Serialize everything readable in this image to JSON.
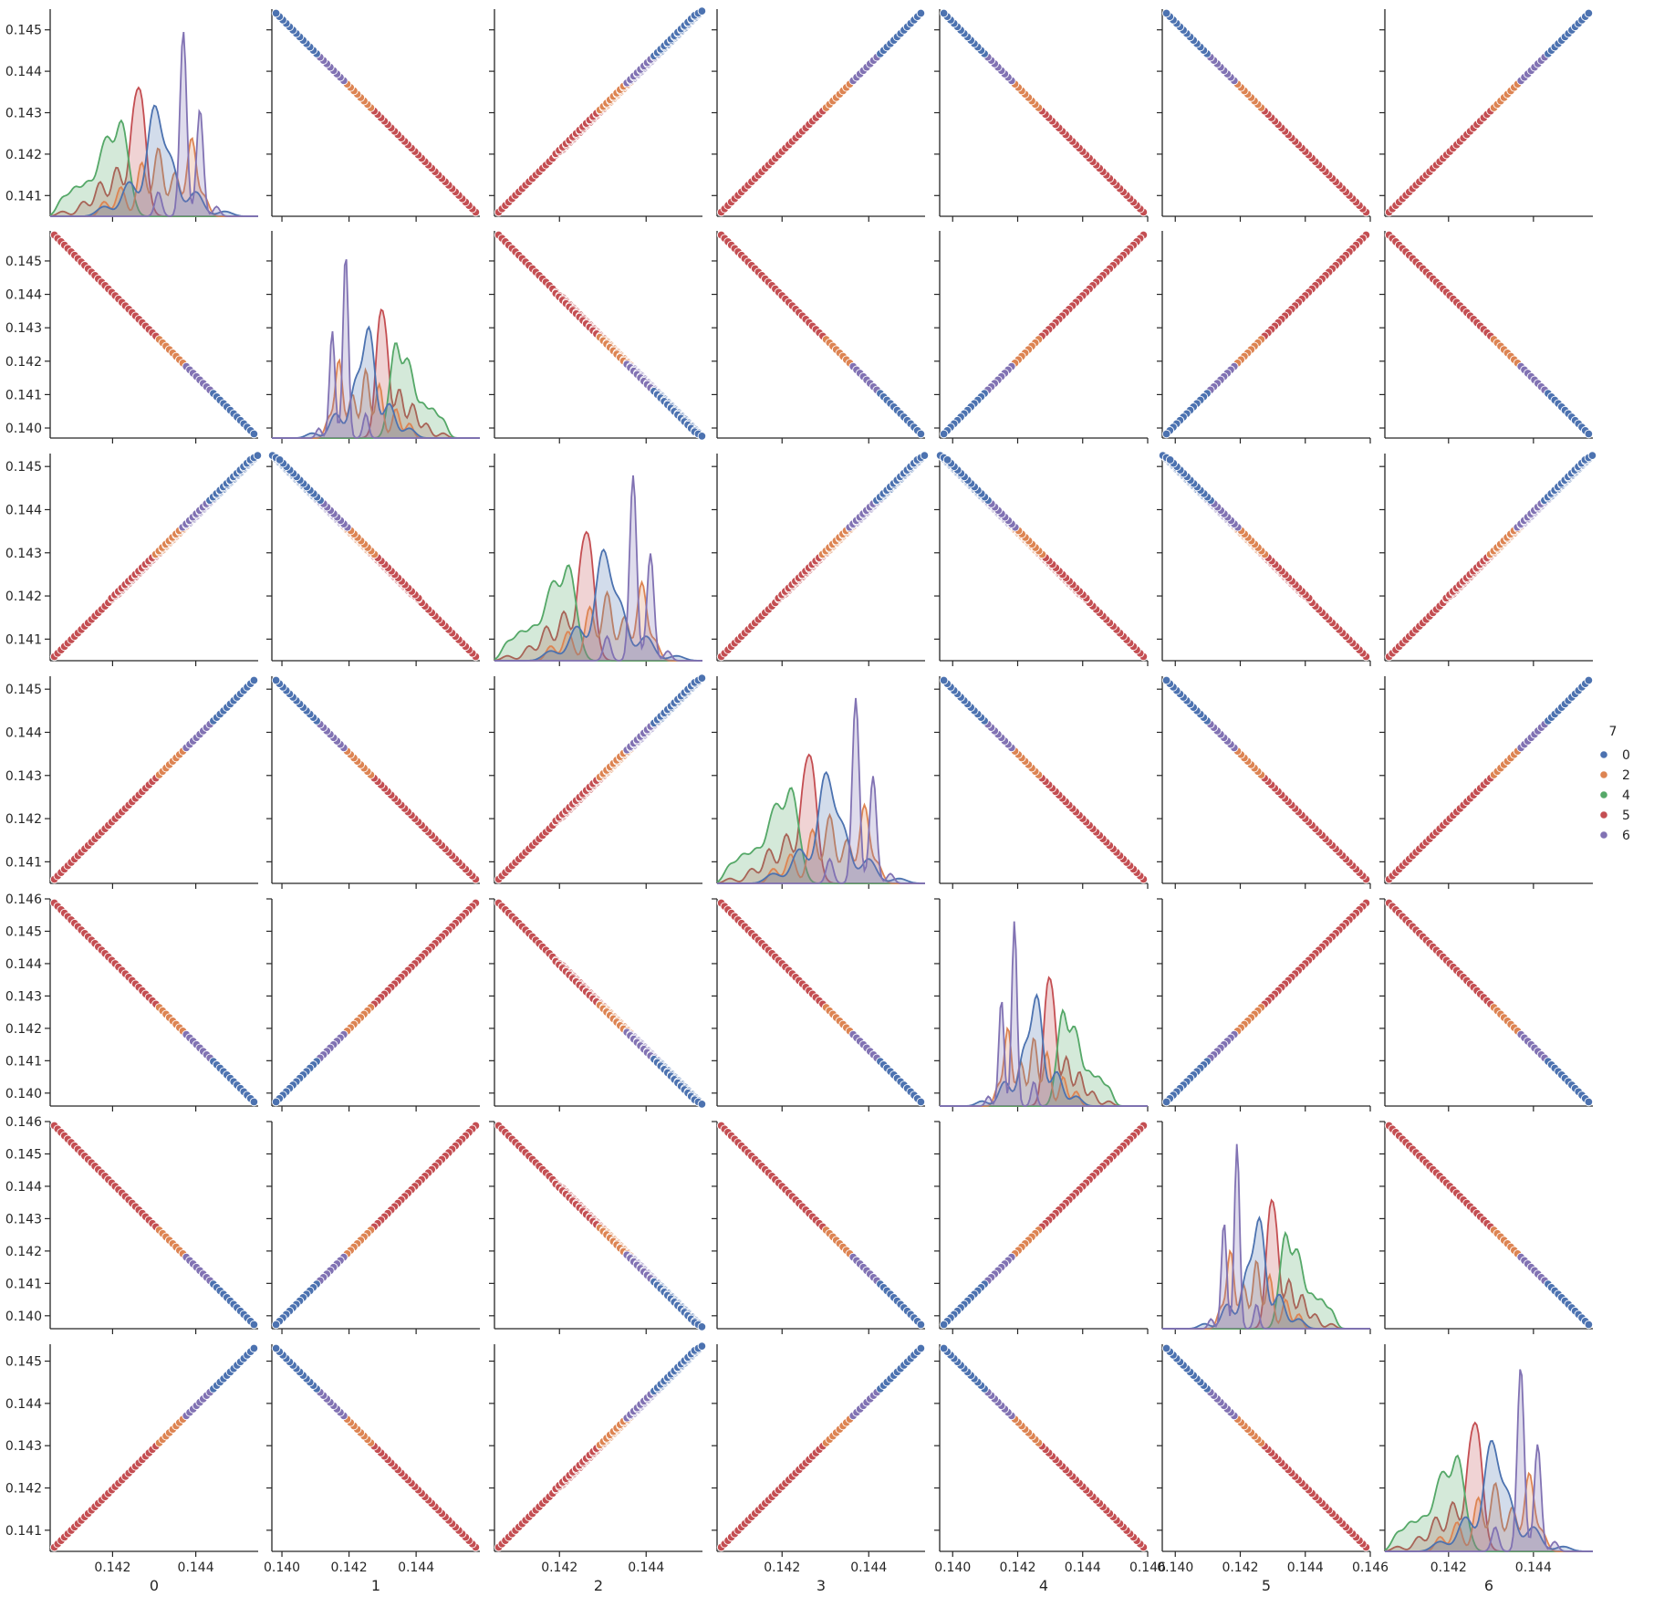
{
  "chart_data": {
    "type": "scatter",
    "kind": "pairplot",
    "variables": [
      "0",
      "1",
      "2",
      "3",
      "4",
      "5",
      "6"
    ],
    "diag_kind": "kde",
    "hue_title": "7",
    "hue_levels": [
      "0",
      "2",
      "4",
      "5",
      "6"
    ],
    "colors": {
      "0": "#4c72b0",
      "2": "#dd8452",
      "4": "#55a868",
      "5": "#c44e52",
      "6": "#8172b3"
    },
    "ranges": {
      "0": [
        0.1405,
        0.1455
      ],
      "1": [
        0.1397,
        0.1459
      ],
      "2": [
        0.1405,
        0.1453
      ],
      "3": [
        0.1405,
        0.1453
      ],
      "4": [
        0.1396,
        0.146
      ],
      "5": [
        0.1396,
        0.146
      ],
      "6": [
        0.1405,
        0.1454
      ]
    },
    "ticks": {
      "0": [
        "0.141",
        "0.142",
        "0.143",
        "0.144",
        "0.145"
      ],
      "1": [
        "0.140",
        "0.141",
        "0.142",
        "0.143",
        "0.144",
        "0.145",
        "0.146"
      ],
      "2": [
        "0.141",
        "0.142",
        "0.143",
        "0.144",
        "0.145"
      ],
      "3": [
        "0.141",
        "0.142",
        "0.143",
        "0.144",
        "0.145"
      ],
      "4": [
        "0.140",
        "0.141",
        "0.142",
        "0.143",
        "0.144",
        "0.145",
        "0.146"
      ],
      "5": [
        "0.140",
        "0.141",
        "0.142",
        "0.143",
        "0.144",
        "0.145",
        "0.146"
      ],
      "6": [
        "0.141",
        "0.142",
        "0.143",
        "0.144",
        "0.145"
      ]
    },
    "x_tick_labels": {
      "0": [
        "0.142",
        "0.144"
      ],
      "1": [
        "0.140",
        "0.142",
        "0.144",
        "0.146"
      ],
      "2": [
        "0.142",
        "0.144"
      ],
      "3": [
        "0.142",
        "0.144"
      ],
      "4": [
        "0.140",
        "0.142",
        "0.144",
        "0.146"
      ],
      "5": [
        "0.140",
        "0.142",
        "0.144",
        "0.146"
      ],
      "6": [
        "0.142",
        "0.144"
      ]
    },
    "scatter_hue_segments": [
      {
        "hue": "5",
        "from": 0.0,
        "to": 0.55
      },
      {
        "hue": "2",
        "from": 0.52,
        "to": 0.68
      },
      {
        "hue": "6",
        "from": 0.66,
        "to": 0.8
      },
      {
        "hue": "0",
        "from": 0.78,
        "to": 1.0
      }
    ],
    "kde_peaks": {
      "0": [
        [
          0.1411,
          0.2
        ],
        [
          0.1414,
          0.3
        ],
        [
          0.1417,
          0.35
        ],
        [
          0.142,
          0.45
        ],
        [
          0.1422,
          0.7
        ],
        [
          0.1425,
          0.95
        ],
        [
          0.1427,
          0.3
        ]
      ],
      "2": [
        [
          0.1418,
          0.15
        ],
        [
          0.1422,
          0.3
        ],
        [
          0.1427,
          0.55
        ],
        [
          0.1431,
          0.7
        ],
        [
          0.1435,
          0.45
        ],
        [
          0.1439,
          0.8
        ],
        [
          0.1442,
          0.2
        ]
      ],
      "6": [
        [
          0.1431,
          0.25
        ],
        [
          0.1437,
          1.9
        ],
        [
          0.1441,
          1.1
        ],
        [
          0.1445,
          0.1
        ]
      ],
      "0b": [
        [
          0.1418,
          0.1
        ],
        [
          0.1424,
          0.35
        ],
        [
          0.143,
          1.1
        ],
        [
          0.1434,
          0.55
        ],
        [
          0.144,
          0.25
        ],
        [
          0.1447,
          0.05
        ]
      ],
      "5": [
        [
          0.1408,
          0.05
        ],
        [
          0.1413,
          0.15
        ],
        [
          0.1417,
          0.35
        ],
        [
          0.1421,
          0.5
        ],
        [
          0.1425,
          0.85
        ],
        [
          0.1427,
          1.0
        ],
        [
          0.1429,
          0.05
        ]
      ]
    }
  }
}
